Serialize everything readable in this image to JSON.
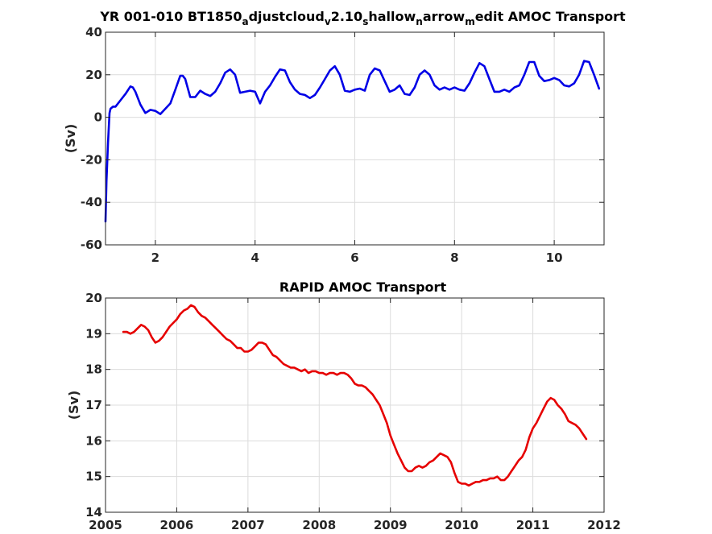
{
  "chart_data": [
    {
      "type": "line",
      "title_parts": [
        {
          "t": "YR 001-010 BT1850",
          "sub": false
        },
        {
          "t": "a",
          "sub": true
        },
        {
          "t": "djustcloud",
          "sub": false
        },
        {
          "t": "v",
          "sub": true
        },
        {
          "t": "2.10",
          "sub": false
        },
        {
          "t": "s",
          "sub": true
        },
        {
          "t": "hallow",
          "sub": false
        },
        {
          "t": "n",
          "sub": true
        },
        {
          "t": "arrow",
          "sub": false
        },
        {
          "t": "m",
          "sub": true
        },
        {
          "t": "edit AMOC Transport",
          "sub": false
        }
      ],
      "xlabel": "",
      "ylabel": "(Sv)",
      "xlim": [
        1,
        11
      ],
      "ylim": [
        -60,
        40
      ],
      "xticks": [
        2,
        4,
        6,
        8,
        10
      ],
      "yticks": [
        -60,
        -40,
        -20,
        0,
        20,
        40
      ],
      "grid": true,
      "color": "#0000e6",
      "series": [
        {
          "x": [
            1.0,
            1.02,
            1.05,
            1.08,
            1.1,
            1.15,
            1.2,
            1.3,
            1.4,
            1.5,
            1.55,
            1.6,
            1.7,
            1.8,
            1.9,
            2.0,
            2.1,
            2.2,
            2.3,
            2.4,
            2.5,
            2.55,
            2.6,
            2.7,
            2.8,
            2.9,
            3.0,
            3.1,
            3.2,
            3.3,
            3.4,
            3.5,
            3.6,
            3.7,
            3.8,
            3.9,
            4.0,
            4.1,
            4.2,
            4.3,
            4.4,
            4.5,
            4.6,
            4.7,
            4.8,
            4.9,
            5.0,
            5.1,
            5.2,
            5.3,
            5.4,
            5.5,
            5.6,
            5.7,
            5.8,
            5.9,
            6.0,
            6.1,
            6.2,
            6.3,
            6.4,
            6.5,
            6.6,
            6.7,
            6.8,
            6.9,
            7.0,
            7.1,
            7.2,
            7.3,
            7.4,
            7.5,
            7.6,
            7.7,
            7.8,
            7.9,
            8.0,
            8.1,
            8.2,
            8.3,
            8.4,
            8.5,
            8.6,
            8.7,
            8.8,
            8.9,
            9.0,
            9.1,
            9.2,
            9.3,
            9.4,
            9.5,
            9.6,
            9.7,
            9.8,
            9.9,
            10.0,
            10.1,
            10.2,
            10.3,
            10.4,
            10.5,
            10.6,
            10.7,
            10.8,
            10.9
          ],
          "y": [
            -49,
            -30,
            -12,
            2,
            4,
            5,
            5,
            8,
            11,
            14.5,
            14,
            12,
            6,
            2,
            3.5,
            3,
            1.5,
            4,
            6.5,
            13,
            19.5,
            19.5,
            18,
            9.5,
            9.5,
            12.5,
            11,
            10,
            12,
            16,
            21,
            22.5,
            20,
            11.5,
            12,
            12.5,
            12,
            6.5,
            12,
            15,
            19,
            22.5,
            22,
            16.5,
            13,
            11,
            10.5,
            9,
            10.5,
            14,
            18,
            22,
            24,
            20,
            12.5,
            12,
            13,
            13.5,
            12.5,
            20,
            23,
            22,
            17,
            12,
            13,
            15,
            11,
            10.5,
            14,
            20,
            22,
            20,
            15,
            13,
            14,
            13,
            14,
            13,
            12.5,
            16,
            21,
            25.5,
            24,
            18,
            12,
            12,
            13,
            12,
            14,
            15,
            20,
            26,
            26,
            19.5,
            17,
            17.5,
            18.5,
            17.5,
            15,
            14.5,
            16,
            20,
            26.5,
            26,
            20,
            13.5
          ]
        }
      ]
    },
    {
      "type": "line",
      "title": "RAPID AMOC Transport",
      "xlabel": "",
      "ylabel": "(Sv)",
      "xlim": [
        2005,
        2012
      ],
      "ylim": [
        14,
        20
      ],
      "xticks": [
        2005,
        2006,
        2007,
        2008,
        2009,
        2010,
        2011,
        2012
      ],
      "yticks": [
        14,
        15,
        16,
        17,
        18,
        19,
        20
      ],
      "grid": true,
      "color": "#e60000",
      "series": [
        {
          "x": [
            2005.25,
            2005.3,
            2005.35,
            2005.4,
            2005.45,
            2005.5,
            2005.55,
            2005.6,
            2005.65,
            2005.7,
            2005.75,
            2005.8,
            2005.85,
            2005.9,
            2005.95,
            2006.0,
            2006.05,
            2006.1,
            2006.15,
            2006.2,
            2006.25,
            2006.3,
            2006.35,
            2006.4,
            2006.45,
            2006.5,
            2006.55,
            2006.6,
            2006.65,
            2006.7,
            2006.75,
            2006.8,
            2006.85,
            2006.9,
            2006.95,
            2007.0,
            2007.05,
            2007.1,
            2007.15,
            2007.2,
            2007.25,
            2007.3,
            2007.35,
            2007.4,
            2007.45,
            2007.5,
            2007.55,
            2007.6,
            2007.65,
            2007.7,
            2007.75,
            2007.8,
            2007.85,
            2007.9,
            2007.95,
            2008.0,
            2008.05,
            2008.1,
            2008.15,
            2008.2,
            2008.25,
            2008.3,
            2008.35,
            2008.4,
            2008.45,
            2008.5,
            2008.55,
            2008.6,
            2008.65,
            2008.7,
            2008.75,
            2008.8,
            2008.85,
            2008.9,
            2008.95,
            2009.0,
            2009.05,
            2009.1,
            2009.15,
            2009.2,
            2009.25,
            2009.3,
            2009.35,
            2009.4,
            2009.45,
            2009.5,
            2009.55,
            2009.6,
            2009.65,
            2009.7,
            2009.75,
            2009.8,
            2009.85,
            2009.9,
            2009.95,
            2010.0,
            2010.05,
            2010.1,
            2010.15,
            2010.2,
            2010.25,
            2010.3,
            2010.35,
            2010.4,
            2010.45,
            2010.5,
            2010.55,
            2010.6,
            2010.65,
            2010.7,
            2010.75,
            2010.8,
            2010.85,
            2010.9,
            2010.95,
            2011.0,
            2011.05,
            2011.1,
            2011.15,
            2011.2,
            2011.25,
            2011.3,
            2011.35,
            2011.4,
            2011.45,
            2011.5,
            2011.55,
            2011.6,
            2011.65,
            2011.7,
            2011.75
          ],
          "y": [
            19.05,
            19.05,
            19.0,
            19.05,
            19.15,
            19.25,
            19.2,
            19.1,
            18.9,
            18.75,
            18.8,
            18.9,
            19.05,
            19.2,
            19.3,
            19.4,
            19.55,
            19.65,
            19.7,
            19.8,
            19.75,
            19.6,
            19.5,
            19.45,
            19.35,
            19.25,
            19.15,
            19.05,
            18.95,
            18.85,
            18.8,
            18.7,
            18.6,
            18.6,
            18.5,
            18.5,
            18.55,
            18.65,
            18.75,
            18.75,
            18.7,
            18.55,
            18.4,
            18.35,
            18.25,
            18.15,
            18.1,
            18.05,
            18.05,
            18.0,
            17.95,
            18.0,
            17.9,
            17.95,
            17.95,
            17.9,
            17.9,
            17.85,
            17.9,
            17.9,
            17.85,
            17.9,
            17.9,
            17.85,
            17.75,
            17.6,
            17.55,
            17.55,
            17.5,
            17.4,
            17.3,
            17.15,
            17.0,
            16.75,
            16.5,
            16.15,
            15.9,
            15.65,
            15.45,
            15.25,
            15.15,
            15.15,
            15.25,
            15.3,
            15.25,
            15.3,
            15.4,
            15.45,
            15.55,
            15.65,
            15.6,
            15.55,
            15.4,
            15.1,
            14.85,
            14.8,
            14.8,
            14.75,
            14.8,
            14.85,
            14.85,
            14.9,
            14.9,
            14.95,
            14.95,
            15.0,
            14.9,
            14.9,
            15.0,
            15.15,
            15.3,
            15.45,
            15.55,
            15.75,
            16.1,
            16.35,
            16.5,
            16.7,
            16.9,
            17.1,
            17.2,
            17.15,
            17.0,
            16.9,
            16.75,
            16.55,
            16.5,
            16.45,
            16.35,
            16.2,
            16.05
          ]
        }
      ]
    }
  ]
}
